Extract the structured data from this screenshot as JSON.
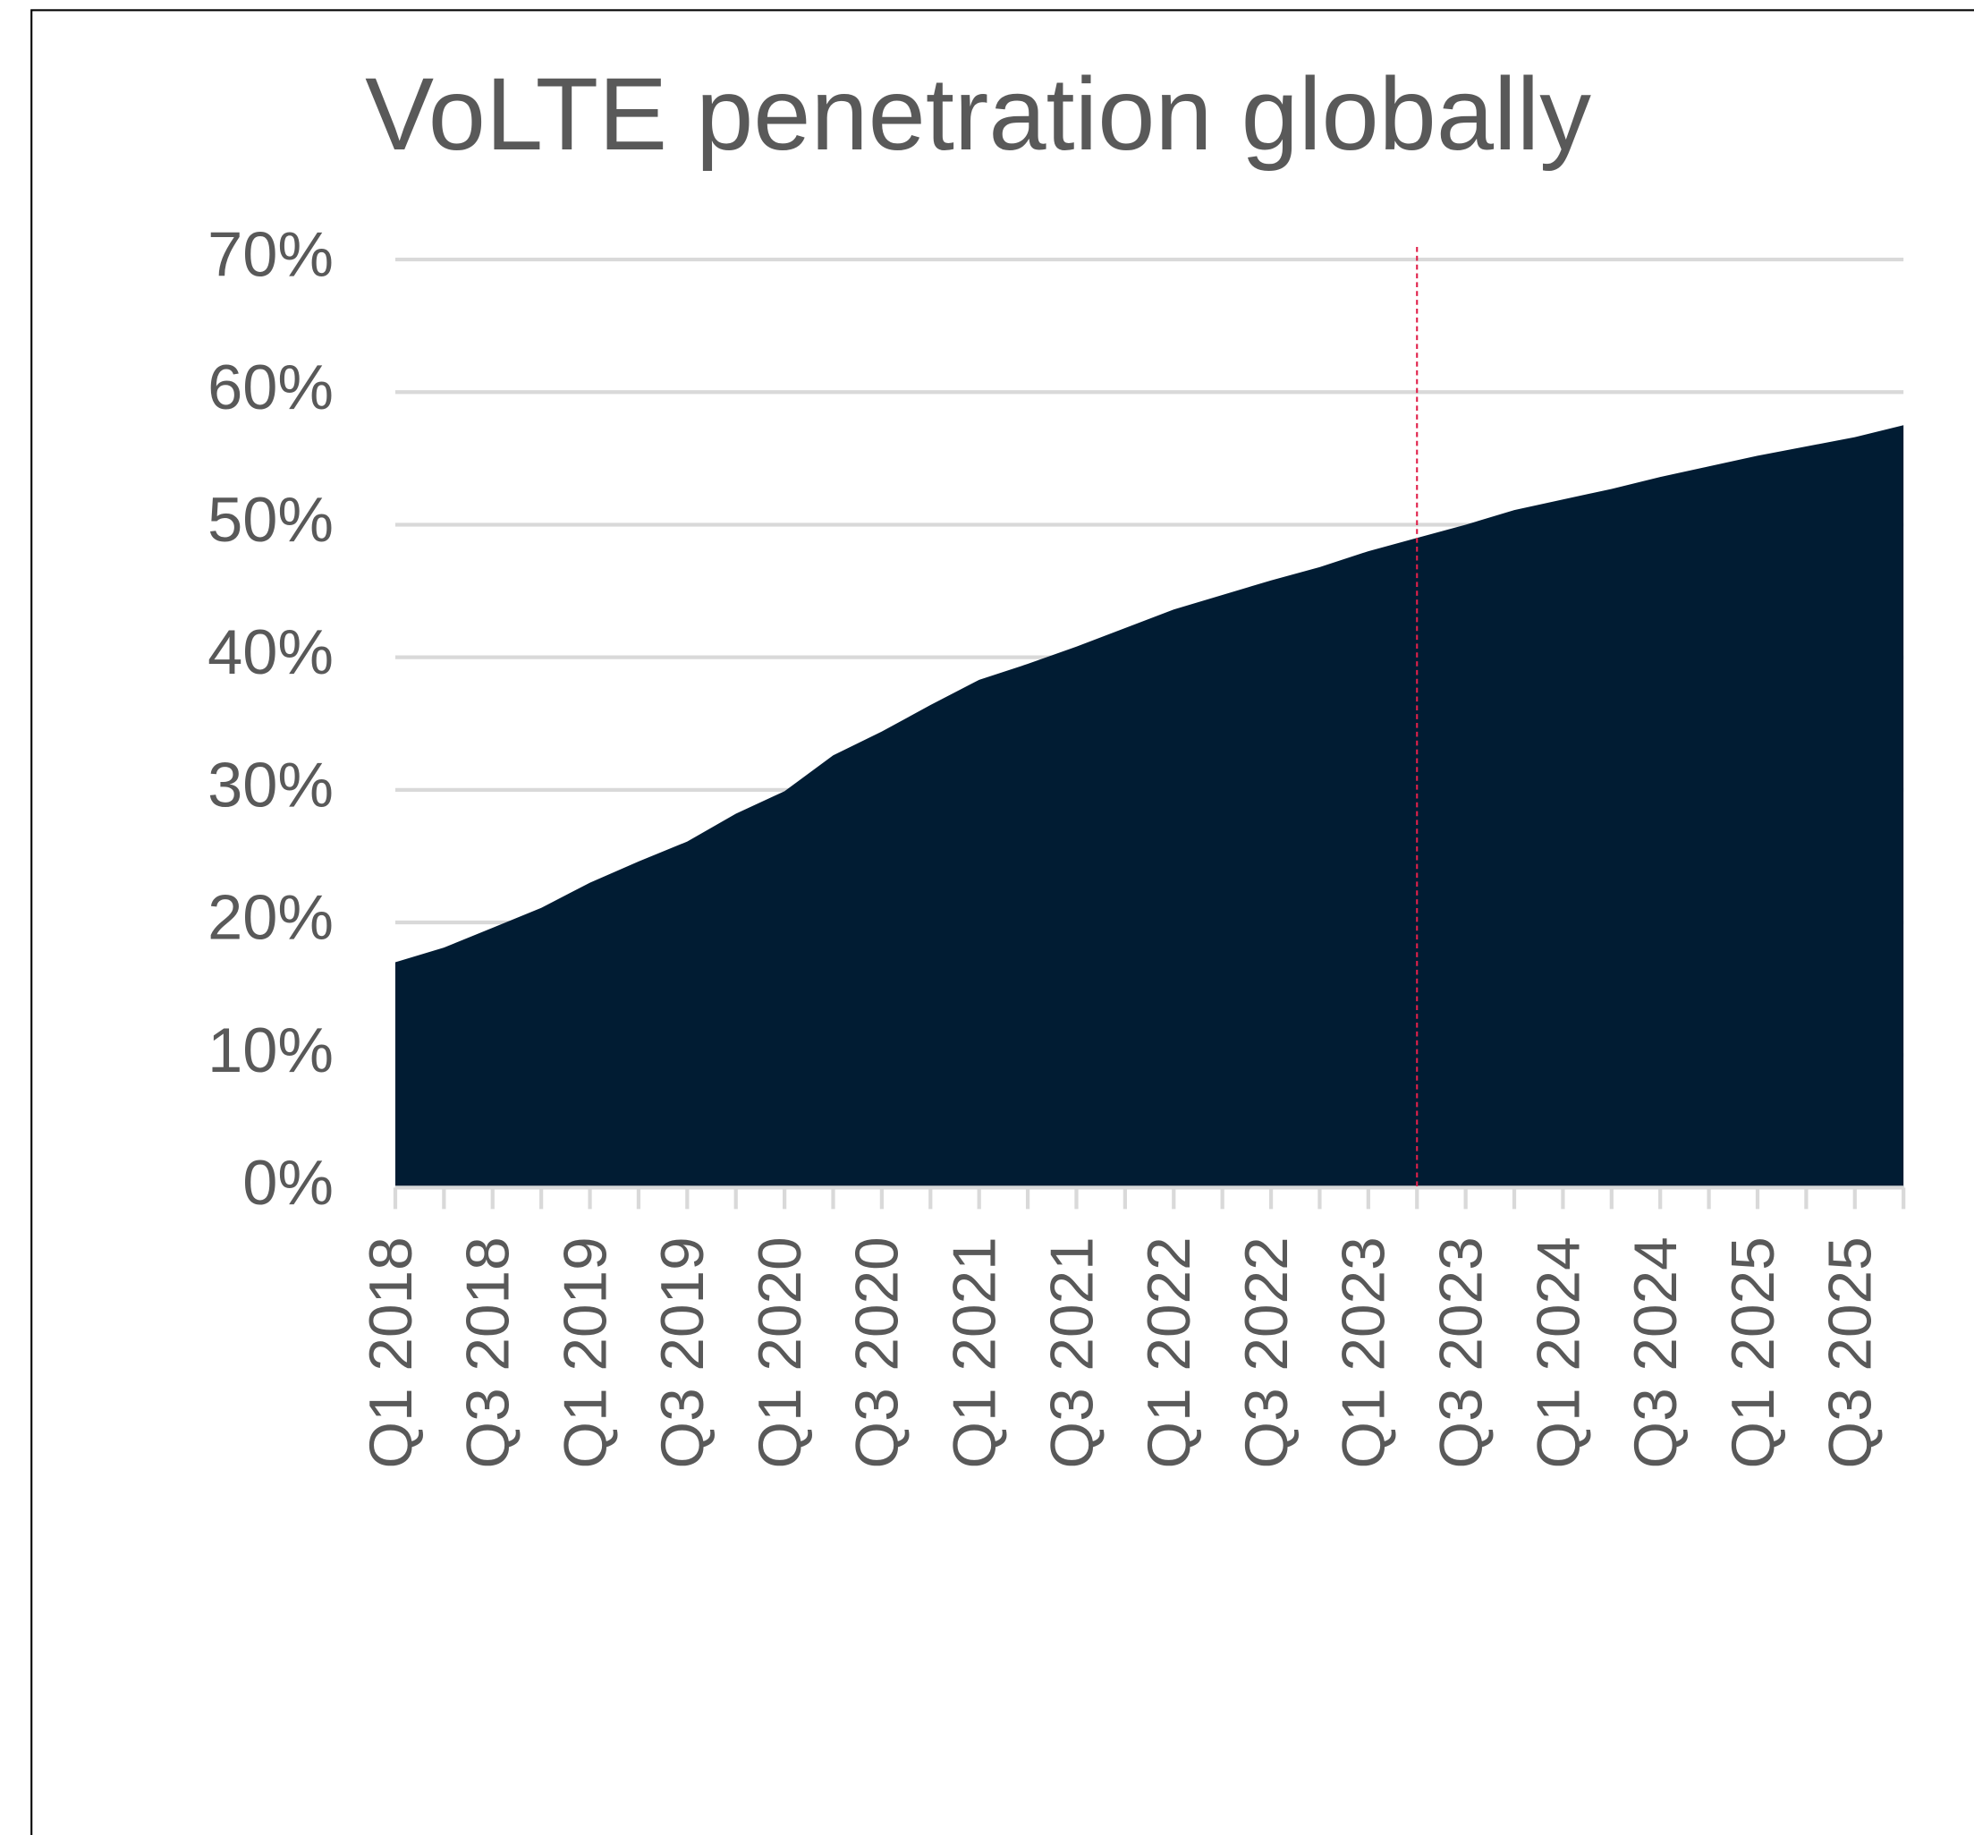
{
  "chart_data": {
    "type": "area",
    "title": "VoLTE penetration globally",
    "categories": [
      "Q1 2018",
      null,
      "Q3 2018",
      null,
      "Q1 2019",
      null,
      "Q3 2019",
      null,
      "Q1 2020",
      null,
      "Q3 2020",
      null,
      "Q1 2021",
      null,
      "Q3 2021",
      null,
      "Q1 2022",
      null,
      "Q3 2022",
      null,
      "Q1 2023",
      null,
      "Q3 2023",
      null,
      "Q1 2024",
      null,
      "Q3 2024",
      null,
      "Q1 2025",
      null,
      "Q3 2025",
      null
    ],
    "values": [
      17.0,
      18.1,
      19.6,
      21.1,
      23.0,
      24.6,
      26.1,
      28.2,
      29.9,
      32.6,
      34.4,
      36.4,
      38.3,
      39.5,
      40.8,
      42.2,
      43.6,
      44.7,
      45.8,
      46.8,
      48.0,
      49.0,
      50.0,
      51.1,
      51.9,
      52.7,
      53.6,
      54.4,
      55.2,
      55.9,
      56.6,
      57.5
    ],
    "color": "#011c33",
    "ylim": [
      0,
      70
    ],
    "yticks": [
      {
        "value": 0,
        "label": "0%"
      },
      {
        "value": 10,
        "label": "10%"
      },
      {
        "value": 20,
        "label": "20%"
      },
      {
        "value": 30,
        "label": "30%"
      },
      {
        "value": 40,
        "label": "40%"
      },
      {
        "value": 50,
        "label": "50%"
      },
      {
        "value": 60,
        "label": "60%"
      },
      {
        "value": 70,
        "label": "70%"
      }
    ],
    "grid": true,
    "marker_line": {
      "category_index": 21,
      "color": "#e0204a",
      "style": "dashed"
    }
  }
}
